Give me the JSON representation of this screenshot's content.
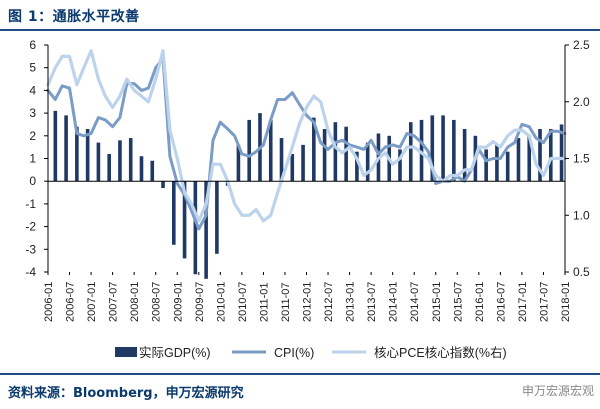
{
  "header": {
    "title": "图 1：通胀水平改善"
  },
  "footer": {
    "source": "资料来源：Bloomberg，申万宏源研究",
    "watermark": "申万宏源宏观"
  },
  "chart_data": {
    "type": "bar+line",
    "title": "通胀水平改善",
    "left_axis": {
      "ylim": [
        -4,
        6
      ],
      "ticks": [
        -4,
        -3,
        -2,
        -1,
        0,
        1,
        2,
        3,
        4,
        5,
        6
      ]
    },
    "right_axis": {
      "ylim": [
        0.5,
        2.5
      ],
      "ticks": [
        0.5,
        1.0,
        1.5,
        2.0,
        2.5
      ],
      "tick_labels": [
        "0.5",
        "1.0",
        "1.5",
        "2.0",
        "2.5"
      ]
    },
    "x_tick_labels": [
      "2006-01",
      "2006-07",
      "2007-01",
      "2007-07",
      "2008-01",
      "2008-07",
      "2009-01",
      "2009-07",
      "2010-01",
      "2010-07",
      "2011-01",
      "2011-07",
      "2012-01",
      "2012-07",
      "2013-01",
      "2013-07",
      "2014-01",
      "2014-07",
      "2015-01",
      "2015-07",
      "2016-01",
      "2016-07",
      "2017-01",
      "2017-07",
      "2018-01"
    ],
    "x_range": [
      2006.0,
      2018.0
    ],
    "bars": {
      "name": "实际GDP(%)",
      "color": "#1f3864",
      "x": [
        2006.17,
        2006.42,
        2006.67,
        2006.92,
        2007.17,
        2007.42,
        2007.67,
        2007.92,
        2008.17,
        2008.42,
        2008.67,
        2008.92,
        2009.17,
        2009.42,
        2009.67,
        2009.92,
        2010.17,
        2010.42,
        2010.67,
        2010.92,
        2011.17,
        2011.42,
        2011.67,
        2011.92,
        2012.17,
        2012.42,
        2012.67,
        2012.92,
        2013.17,
        2013.42,
        2013.67,
        2013.92,
        2014.17,
        2014.42,
        2014.67,
        2014.92,
        2015.17,
        2015.42,
        2015.67,
        2015.92,
        2016.17,
        2016.42,
        2016.67,
        2016.92,
        2017.17,
        2017.42,
        2017.67,
        2017.92
      ],
      "values": [
        3.1,
        2.9,
        2.4,
        2.3,
        1.7,
        1.2,
        1.8,
        1.9,
        1.1,
        0.9,
        -0.3,
        -2.8,
        -3.4,
        -4.1,
        -4.3,
        -3.2,
        -0.2,
        1.6,
        2.7,
        3.0,
        2.7,
        1.9,
        1.2,
        1.6,
        2.8,
        2.3,
        2.6,
        2.4,
        1.3,
        1.7,
        2.1,
        2.0,
        1.4,
        2.6,
        2.7,
        2.9,
        2.9,
        2.7,
        2.3,
        2.0,
        1.4,
        1.6,
        1.3,
        1.9,
        2.0,
        2.3,
        2.3,
        2.5
      ]
    },
    "series": [
      {
        "name": "CPI(%)",
        "axis": "left",
        "color": "#7a9cc6",
        "x": [
          2006.0,
          2006.17,
          2006.33,
          2006.5,
          2006.67,
          2006.83,
          2007.0,
          2007.17,
          2007.33,
          2007.5,
          2007.67,
          2007.83,
          2008.0,
          2008.17,
          2008.33,
          2008.5,
          2008.67,
          2008.83,
          2009.0,
          2009.17,
          2009.33,
          2009.5,
          2009.67,
          2009.83,
          2010.0,
          2010.17,
          2010.33,
          2010.5,
          2010.67,
          2010.83,
          2011.0,
          2011.17,
          2011.33,
          2011.5,
          2011.67,
          2011.83,
          2012.0,
          2012.17,
          2012.33,
          2012.5,
          2012.67,
          2012.83,
          2013.0,
          2013.17,
          2013.33,
          2013.5,
          2013.67,
          2013.83,
          2014.0,
          2014.17,
          2014.33,
          2014.5,
          2014.67,
          2014.83,
          2015.0,
          2015.17,
          2015.33,
          2015.5,
          2015.67,
          2015.83,
          2016.0,
          2016.17,
          2016.33,
          2016.5,
          2016.67,
          2016.83,
          2017.0,
          2017.17,
          2017.33,
          2017.5,
          2017.67,
          2017.83,
          2018.0
        ],
        "values": [
          4.0,
          3.6,
          4.2,
          4.1,
          2.1,
          2.0,
          2.1,
          2.8,
          2.7,
          2.4,
          2.8,
          4.3,
          4.3,
          4.0,
          4.1,
          5.0,
          5.4,
          1.1,
          -0.1,
          -0.6,
          -1.3,
          -2.1,
          -1.5,
          1.8,
          2.6,
          2.3,
          2.0,
          1.2,
          1.1,
          1.3,
          1.6,
          2.7,
          3.6,
          3.6,
          3.9,
          3.4,
          2.9,
          2.6,
          1.7,
          1.4,
          1.7,
          1.8,
          1.6,
          1.5,
          1.4,
          1.8,
          1.2,
          1.5,
          1.6,
          1.5,
          2.1,
          2.0,
          1.7,
          1.3,
          -0.1,
          0.0,
          0.0,
          0.2,
          0.0,
          0.5,
          1.4,
          0.9,
          1.0,
          1.0,
          1.5,
          1.7,
          2.5,
          2.4,
          1.9,
          1.7,
          2.2,
          2.2,
          2.1
        ]
      },
      {
        "name": "核心PCE核心指数(%右)",
        "axis": "right",
        "color": "#bdd3ec",
        "x": [
          2006.0,
          2006.17,
          2006.33,
          2006.5,
          2006.67,
          2006.83,
          2007.0,
          2007.17,
          2007.33,
          2007.5,
          2007.67,
          2007.83,
          2008.0,
          2008.17,
          2008.33,
          2008.5,
          2008.67,
          2008.83,
          2009.0,
          2009.17,
          2009.33,
          2009.5,
          2009.67,
          2009.83,
          2010.0,
          2010.17,
          2010.33,
          2010.5,
          2010.67,
          2010.83,
          2011.0,
          2011.17,
          2011.33,
          2011.5,
          2011.67,
          2011.83,
          2012.0,
          2012.17,
          2012.33,
          2012.5,
          2012.67,
          2012.83,
          2013.0,
          2013.17,
          2013.33,
          2013.5,
          2013.67,
          2013.83,
          2014.0,
          2014.17,
          2014.33,
          2014.5,
          2014.67,
          2014.83,
          2015.0,
          2015.17,
          2015.33,
          2015.5,
          2015.67,
          2015.83,
          2016.0,
          2016.17,
          2016.33,
          2016.5,
          2016.67,
          2016.83,
          2017.0,
          2017.17,
          2017.33,
          2017.5,
          2017.67,
          2017.83,
          2018.0
        ],
        "values": [
          2.15,
          2.3,
          2.4,
          2.4,
          2.15,
          2.3,
          2.45,
          2.2,
          2.05,
          1.95,
          2.05,
          2.2,
          2.1,
          2.05,
          2.0,
          2.2,
          2.45,
          1.75,
          1.5,
          1.2,
          1.1,
          0.95,
          1.1,
          1.45,
          1.45,
          1.3,
          1.1,
          1.0,
          1.0,
          1.05,
          0.95,
          1.0,
          1.2,
          1.4,
          1.6,
          1.8,
          1.95,
          2.05,
          2.0,
          1.75,
          1.6,
          1.55,
          1.6,
          1.5,
          1.35,
          1.4,
          1.5,
          1.55,
          1.45,
          1.5,
          1.6,
          1.6,
          1.55,
          1.5,
          1.35,
          1.3,
          1.35,
          1.35,
          1.4,
          1.4,
          1.6,
          1.6,
          1.65,
          1.6,
          1.7,
          1.75,
          1.75,
          1.7,
          1.45,
          1.35,
          1.5,
          1.5,
          1.5
        ]
      }
    ],
    "legend": {
      "position": "bottom",
      "items": [
        "实际GDP(%)",
        "CPI(%)",
        "核心PCE核心指数(%右)"
      ]
    }
  }
}
